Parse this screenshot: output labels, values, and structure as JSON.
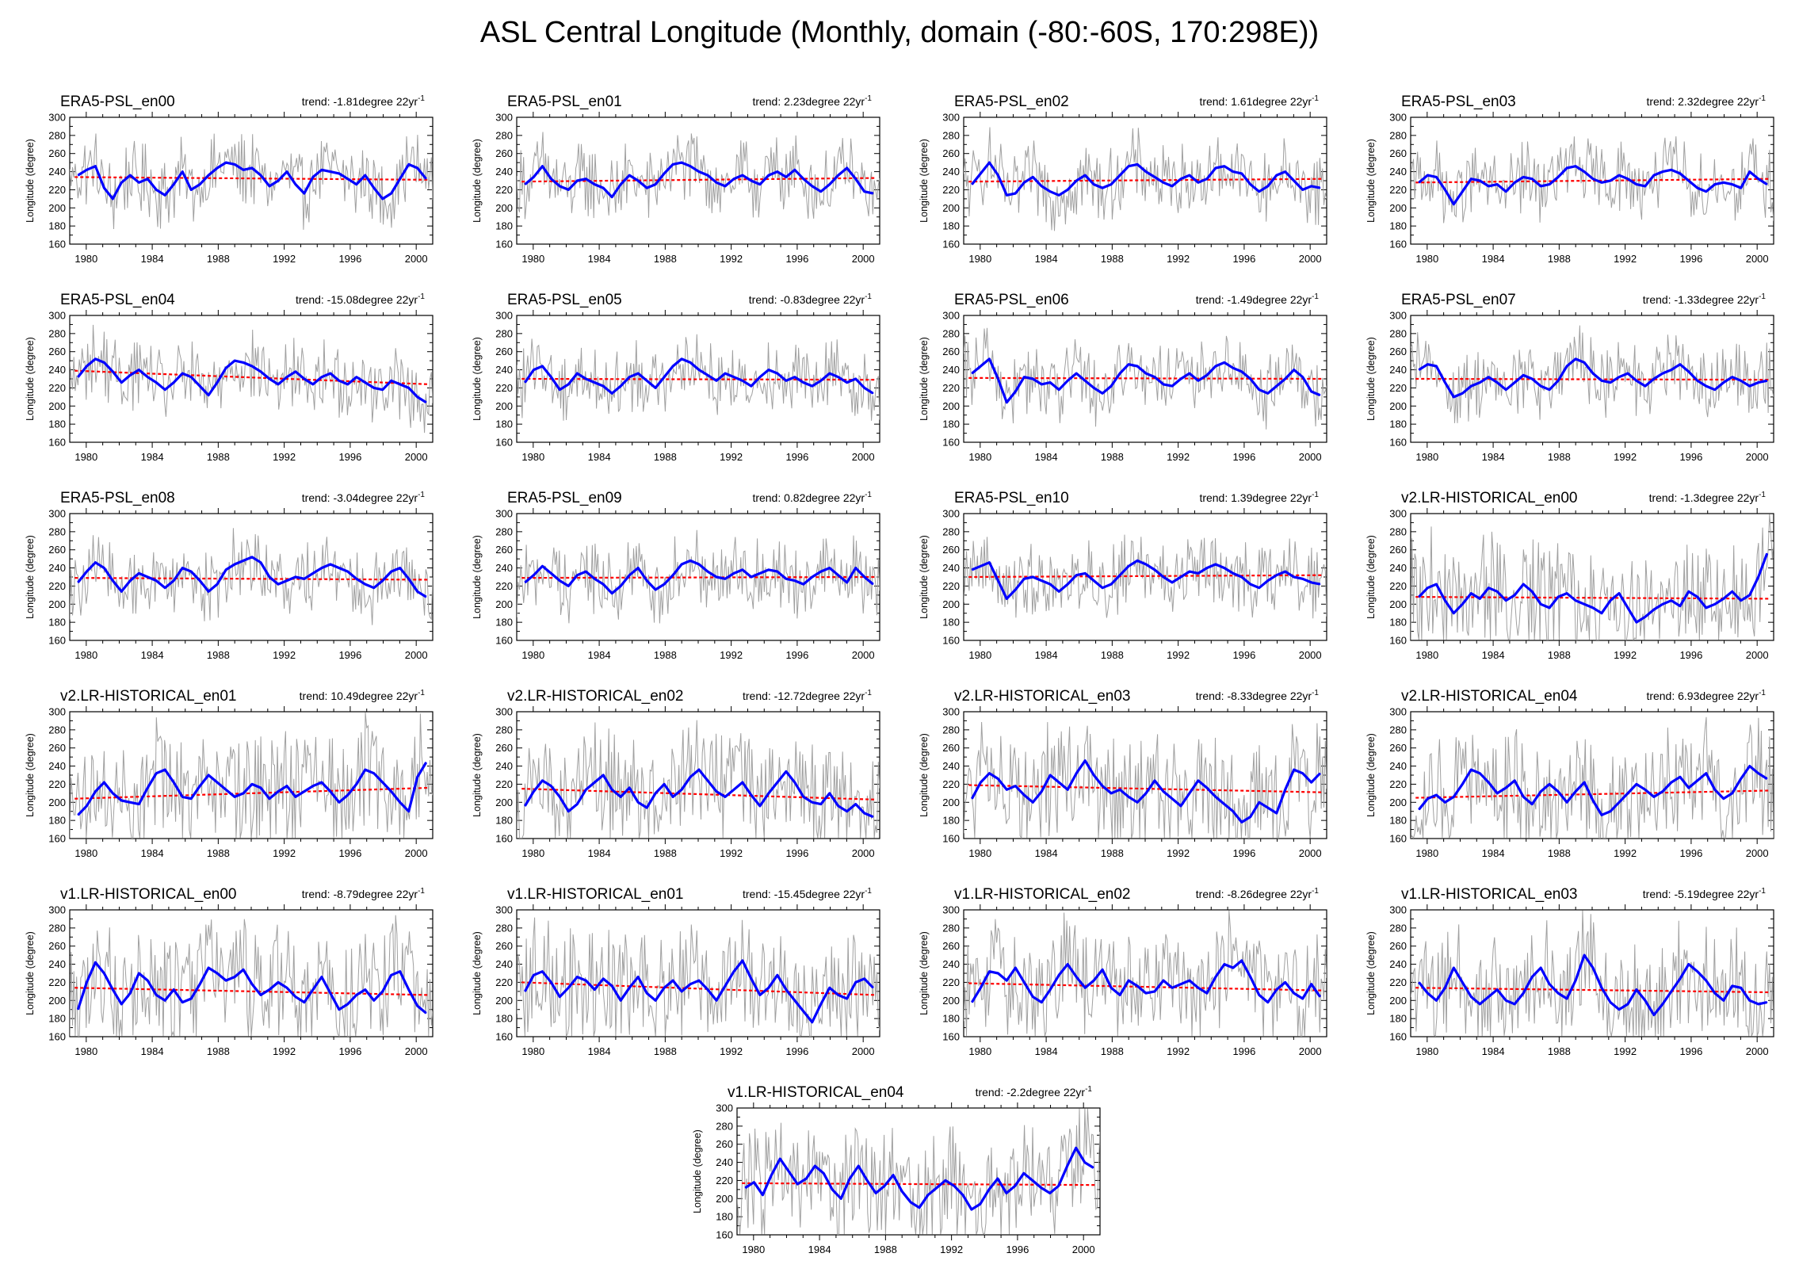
{
  "page": {
    "title": "ASL Central Longitude (Monthly, domain (-80:-60S, 170:298E))"
  },
  "colors": {
    "monthly": "#a0a0a0",
    "smoothed": "#0000ff",
    "trend": "#ff0000",
    "axis": "#000000"
  },
  "chart_data": {
    "type": "line",
    "shared": {
      "ylabel": "Longitude (degree)",
      "ylim": [
        160,
        300
      ],
      "yticks": [
        "160",
        "180",
        "200",
        "220",
        "240",
        "260",
        "280",
        "300"
      ],
      "xlim": [
        1979,
        2001
      ],
      "xticks": [
        "1980",
        "1984",
        "1988",
        "1992",
        "1996",
        "2000"
      ],
      "trend_unit": "22yr",
      "trend_exp": "-1"
    },
    "panels": [
      {
        "name": "ERA5-PSL_en00",
        "trend": "trend: -1.81degree",
        "trend_start": 234,
        "trend_end": 231,
        "smoothed": [
          236,
          242,
          246,
          222,
          210,
          228,
          236,
          228,
          232,
          220,
          214,
          226,
          240,
          220,
          226,
          236,
          244,
          250,
          248,
          242,
          244,
          236,
          224,
          230,
          240,
          226,
          216,
          234,
          242,
          240,
          238,
          232,
          226,
          236,
          222,
          210,
          216,
          232,
          248,
          244,
          232
        ]
      },
      {
        "name": "ERA5-PSL_en01",
        "trend": "trend: 2.23degree",
        "trend_start": 229,
        "trend_end": 233,
        "smoothed": [
          226,
          234,
          246,
          232,
          224,
          220,
          230,
          232,
          226,
          222,
          212,
          226,
          236,
          230,
          222,
          226,
          238,
          248,
          250,
          246,
          240,
          236,
          228,
          224,
          232,
          236,
          230,
          226,
          236,
          240,
          234,
          242,
          232,
          224,
          218,
          226,
          236,
          244,
          232,
          218,
          216
        ]
      },
      {
        "name": "ERA5-PSL_en02",
        "trend": "trend: 1.61degree",
        "trend_start": 229,
        "trend_end": 232,
        "smoothed": [
          226,
          238,
          250,
          236,
          214,
          216,
          228,
          234,
          224,
          218,
          214,
          220,
          230,
          236,
          226,
          222,
          226,
          236,
          246,
          248,
          240,
          234,
          228,
          224,
          232,
          236,
          228,
          232,
          244,
          246,
          240,
          238,
          226,
          218,
          224,
          236,
          240,
          230,
          220,
          224,
          222
        ]
      },
      {
        "name": "ERA5-PSL_en03",
        "trend": "trend: 2.32degree",
        "trend_start": 228,
        "trend_end": 232,
        "smoothed": [
          228,
          236,
          234,
          220,
          204,
          218,
          232,
          230,
          224,
          226,
          218,
          228,
          234,
          232,
          224,
          226,
          234,
          244,
          246,
          240,
          232,
          228,
          230,
          236,
          232,
          226,
          224,
          236,
          240,
          242,
          238,
          230,
          222,
          218,
          226,
          228,
          226,
          222,
          240,
          232,
          226
        ]
      },
      {
        "name": "ERA5-PSL_en04",
        "trend": "trend: -15.08degree",
        "trend_start": 239,
        "trend_end": 224,
        "smoothed": [
          232,
          244,
          252,
          248,
          238,
          226,
          234,
          240,
          232,
          226,
          218,
          226,
          236,
          232,
          222,
          212,
          226,
          242,
          250,
          248,
          244,
          238,
          230,
          224,
          232,
          238,
          230,
          224,
          232,
          236,
          228,
          224,
          232,
          226,
          220,
          218,
          228,
          224,
          220,
          210,
          204
        ]
      },
      {
        "name": "ERA5-PSL_en05",
        "trend": "trend: -0.83degree",
        "trend_start": 230,
        "trend_end": 229,
        "smoothed": [
          226,
          240,
          244,
          232,
          218,
          224,
          236,
          230,
          226,
          222,
          214,
          222,
          232,
          236,
          228,
          220,
          232,
          244,
          252,
          248,
          240,
          234,
          228,
          236,
          232,
          228,
          222,
          232,
          240,
          236,
          228,
          232,
          226,
          222,
          228,
          236,
          232,
          226,
          230,
          220,
          214
        ]
      },
      {
        "name": "ERA5-PSL_en06",
        "trend": "trend: -1.49degree",
        "trend_start": 231,
        "trend_end": 230,
        "smoothed": [
          236,
          244,
          252,
          230,
          204,
          216,
          232,
          230,
          224,
          226,
          218,
          228,
          236,
          228,
          220,
          214,
          222,
          236,
          246,
          244,
          236,
          232,
          224,
          222,
          230,
          236,
          228,
          234,
          244,
          248,
          242,
          238,
          230,
          218,
          214,
          222,
          230,
          240,
          232,
          216,
          212
        ]
      },
      {
        "name": "ERA5-PSL_en07",
        "trend": "trend: -1.33degree",
        "trend_start": 230,
        "trend_end": 229,
        "smoothed": [
          240,
          246,
          244,
          226,
          210,
          214,
          222,
          226,
          232,
          226,
          218,
          226,
          234,
          230,
          222,
          218,
          228,
          244,
          252,
          248,
          236,
          228,
          226,
          232,
          236,
          228,
          222,
          230,
          236,
          240,
          246,
          238,
          228,
          222,
          218,
          226,
          232,
          228,
          222,
          226,
          228
        ]
      },
      {
        "name": "ERA5-PSL_en08",
        "trend": "trend: -3.04degree",
        "trend_start": 229,
        "trend_end": 227,
        "smoothed": [
          224,
          236,
          246,
          240,
          226,
          214,
          226,
          234,
          230,
          226,
          218,
          226,
          240,
          236,
          226,
          214,
          222,
          238,
          244,
          248,
          252,
          246,
          230,
          222,
          226,
          230,
          228,
          234,
          240,
          244,
          240,
          236,
          228,
          222,
          218,
          226,
          236,
          240,
          228,
          214,
          208
        ]
      },
      {
        "name": "ERA5-PSL_en09",
        "trend": "trend: 0.82degree",
        "trend_start": 229,
        "trend_end": 230,
        "smoothed": [
          224,
          232,
          242,
          234,
          226,
          220,
          232,
          236,
          228,
          222,
          212,
          220,
          232,
          240,
          226,
          216,
          222,
          232,
          244,
          248,
          244,
          236,
          230,
          228,
          234,
          238,
          230,
          234,
          238,
          236,
          228,
          226,
          222,
          230,
          236,
          240,
          232,
          224,
          240,
          230,
          222
        ]
      },
      {
        "name": "ERA5-PSL_en10",
        "trend": "trend: 1.39degree",
        "trend_start": 230,
        "trend_end": 232,
        "smoothed": [
          238,
          242,
          246,
          226,
          206,
          216,
          228,
          230,
          226,
          222,
          214,
          222,
          232,
          234,
          226,
          218,
          222,
          232,
          242,
          248,
          244,
          238,
          230,
          224,
          230,
          236,
          234,
          240,
          244,
          240,
          234,
          230,
          222,
          218,
          226,
          232,
          236,
          230,
          228,
          224,
          222
        ]
      },
      {
        "name": "v2.LR-HISTORICAL_en00",
        "trend": "trend: -1.3degree",
        "trend_start": 208,
        "trend_end": 206,
        "smoothed": [
          208,
          218,
          222,
          204,
          190,
          200,
          212,
          206,
          218,
          214,
          204,
          210,
          222,
          214,
          200,
          196,
          208,
          212,
          204,
          200,
          196,
          190,
          204,
          212,
          196,
          180,
          186,
          194,
          200,
          204,
          198,
          214,
          208,
          196,
          200,
          206,
          214,
          204,
          210,
          230,
          256
        ]
      },
      {
        "name": "v2.LR-HISTORICAL_en01",
        "trend": "trend: 10.49degree",
        "trend_start": 204,
        "trend_end": 216,
        "smoothed": [
          186,
          196,
          212,
          222,
          210,
          202,
          200,
          198,
          216,
          232,
          236,
          222,
          206,
          204,
          218,
          230,
          222,
          214,
          206,
          210,
          220,
          216,
          204,
          212,
          218,
          206,
          212,
          218,
          222,
          212,
          200,
          208,
          220,
          236,
          232,
          222,
          212,
          200,
          190,
          228,
          244
        ]
      },
      {
        "name": "v2.LR-HISTORICAL_en02",
        "trend": "trend: -12.72degree",
        "trend_start": 215,
        "trend_end": 203,
        "smoothed": [
          196,
          212,
          224,
          218,
          206,
          190,
          198,
          214,
          222,
          230,
          214,
          206,
          216,
          200,
          194,
          210,
          220,
          206,
          214,
          228,
          236,
          224,
          212,
          206,
          214,
          222,
          208,
          196,
          210,
          222,
          234,
          222,
          206,
          200,
          198,
          210,
          196,
          190,
          198,
          188,
          184
        ]
      },
      {
        "name": "v2.LR-HISTORICAL_en03",
        "trend": "trend: -8.33degree",
        "trend_start": 219,
        "trend_end": 211,
        "smoothed": [
          204,
          222,
          232,
          226,
          214,
          218,
          208,
          200,
          212,
          230,
          222,
          214,
          232,
          246,
          230,
          218,
          210,
          214,
          206,
          200,
          210,
          224,
          212,
          204,
          196,
          210,
          224,
          216,
          206,
          198,
          190,
          178,
          184,
          200,
          194,
          188,
          214,
          236,
          232,
          222,
          232
        ]
      },
      {
        "name": "v2.LR-HISTORICAL_en04",
        "trend": "trend: 6.93degree",
        "trend_start": 205,
        "trend_end": 213,
        "smoothed": [
          192,
          204,
          208,
          200,
          206,
          220,
          236,
          232,
          222,
          210,
          216,
          224,
          206,
          198,
          212,
          220,
          212,
          200,
          212,
          222,
          202,
          186,
          190,
          200,
          210,
          220,
          214,
          206,
          212,
          222,
          228,
          216,
          224,
          232,
          214,
          204,
          210,
          226,
          240,
          232,
          226
        ]
      },
      {
        "name": "v1.LR-HISTORICAL_en00",
        "trend": "trend: -8.79degree",
        "trend_start": 214,
        "trend_end": 206,
        "smoothed": [
          190,
          220,
          242,
          230,
          212,
          196,
          208,
          230,
          222,
          206,
          200,
          212,
          198,
          202,
          218,
          236,
          230,
          222,
          226,
          234,
          218,
          206,
          212,
          220,
          214,
          204,
          198,
          212,
          226,
          208,
          190,
          196,
          206,
          212,
          200,
          210,
          228,
          232,
          212,
          194,
          186
        ]
      },
      {
        "name": "v1.LR-HISTORICAL_en01",
        "trend": "trend: -15.45degree",
        "trend_start": 220,
        "trend_end": 206,
        "smoothed": [
          210,
          228,
          232,
          220,
          204,
          214,
          226,
          222,
          212,
          224,
          216,
          200,
          214,
          226,
          208,
          200,
          214,
          222,
          210,
          218,
          222,
          212,
          200,
          216,
          232,
          244,
          224,
          206,
          214,
          228,
          212,
          200,
          188,
          176,
          196,
          214,
          206,
          202,
          220,
          224,
          214
        ]
      },
      {
        "name": "v1.LR-HISTORICAL_en02",
        "trend": "trend: -8.26degree",
        "trend_start": 219,
        "trend_end": 211,
        "smoothed": [
          198,
          214,
          232,
          230,
          222,
          236,
          220,
          204,
          198,
          212,
          228,
          240,
          226,
          214,
          222,
          234,
          214,
          206,
          222,
          216,
          208,
          210,
          222,
          214,
          218,
          222,
          214,
          208,
          226,
          240,
          236,
          244,
          226,
          206,
          198,
          212,
          220,
          208,
          202,
          218,
          204
        ]
      },
      {
        "name": "v1.LR-HISTORICAL_en03",
        "trend": "trend: -5.19degree",
        "trend_start": 214,
        "trend_end": 209,
        "smoothed": [
          220,
          208,
          200,
          214,
          236,
          220,
          204,
          196,
          204,
          212,
          200,
          196,
          208,
          226,
          236,
          218,
          208,
          202,
          222,
          250,
          236,
          214,
          198,
          190,
          196,
          212,
          200,
          184,
          196,
          210,
          224,
          240,
          232,
          222,
          208,
          200,
          216,
          214,
          200,
          196,
          198
        ]
      },
      {
        "name": "v1.LR-HISTORICAL_en04",
        "trend": "trend: -2.2degree",
        "trend_start": 217,
        "trend_end": 215,
        "smoothed": [
          212,
          218,
          204,
          226,
          244,
          230,
          216,
          222,
          236,
          228,
          210,
          200,
          222,
          236,
          220,
          206,
          214,
          226,
          208,
          196,
          190,
          204,
          212,
          220,
          214,
          204,
          188,
          194,
          210,
          222,
          206,
          214,
          228,
          220,
          212,
          206,
          214,
          236,
          256,
          240,
          234
        ]
      }
    ]
  }
}
